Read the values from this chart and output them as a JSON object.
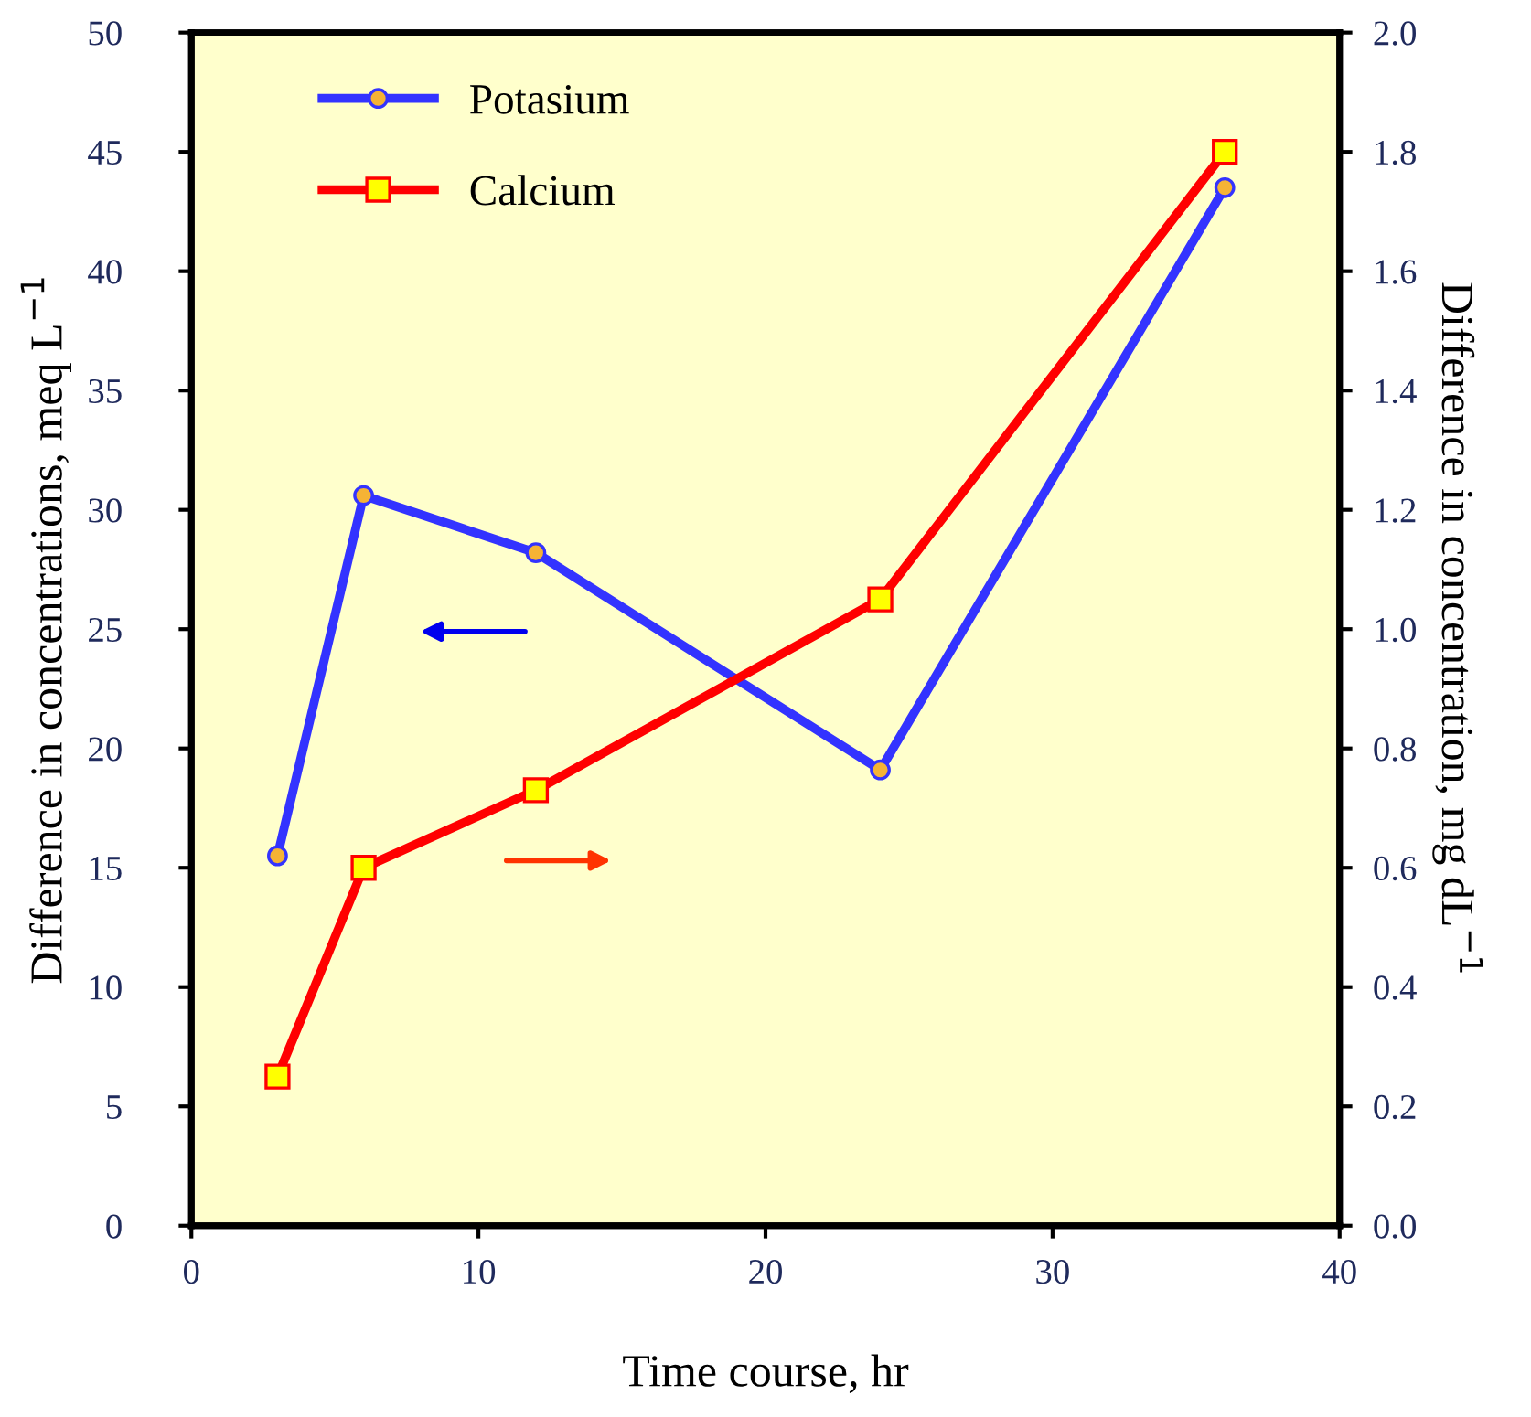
{
  "chart_data": {
    "type": "line",
    "xlabel": "Time course, hr",
    "ylabel": "Difference in concentrations, meq L$^{−1}$",
    "y2label": "Difference in concentration, mg dL$^{−1}$",
    "x": [
      3,
      6,
      12,
      24,
      36
    ],
    "series": [
      {
        "name": "Potasium",
        "color": "#3333ff",
        "marker": "circle",
        "values": [
          15.5,
          30.6,
          28.2,
          19.1,
          43.5
        ]
      },
      {
        "name": "Calcium",
        "color": "#ff0000",
        "marker": "square",
        "axis": "y2",
        "values": [
          0.25,
          0.6,
          0.73,
          1.05,
          1.8
        ]
      }
    ],
    "xlim": [
      0,
      40
    ],
    "xticks": [
      0,
      10,
      20,
      30,
      40
    ],
    "ylim": [
      0,
      50
    ],
    "yticks": [
      0,
      5,
      10,
      15,
      20,
      25,
      30,
      35,
      40,
      45,
      50
    ],
    "y2lim": [
      0,
      2.0
    ],
    "y2ticks": [
      {
        "value": 0,
        "label": "0.0"
      },
      {
        "value": 0.2,
        "label": "0.2"
      },
      {
        "value": 0.4,
        "label": "0.4"
      },
      {
        "value": 0.6,
        "label": "0.6"
      },
      {
        "value": 0.8,
        "label": "0.8"
      },
      {
        "value": 1.0,
        "label": "1.0"
      },
      {
        "value": 1.2,
        "label": "1.2"
      },
      {
        "value": 1.4,
        "label": "1.4"
      },
      {
        "value": 1.6,
        "label": "1.6"
      },
      {
        "value": 1.8,
        "label": "1.8"
      },
      {
        "value": 2.0,
        "label": "2.0"
      }
    ],
    "grid": false,
    "legend": "top left",
    "line_style": "solid"
  }
}
